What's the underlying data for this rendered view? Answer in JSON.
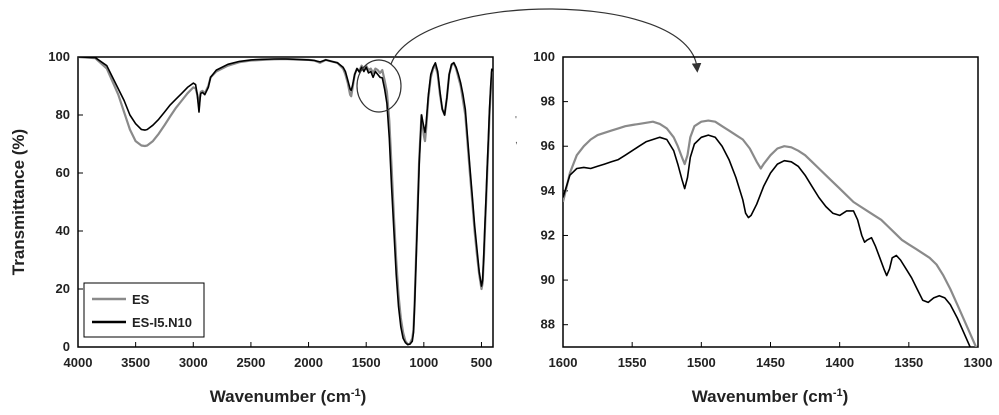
{
  "chart_data": [
    {
      "type": "line",
      "title": "",
      "xlabel": "Wavenumber (cm",
      "xlabel_sup": "-1",
      "xlabel_close": ")",
      "ylabel": "Transmittance (%)",
      "xlim": [
        4000,
        400
      ],
      "ylim": [
        0,
        100
      ],
      "x_reversed": true,
      "xticks": [
        "4000",
        "3500",
        "3000",
        "2500",
        "2000",
        "1500",
        "1000",
        "500"
      ],
      "yticks": [
        "0",
        "20",
        "40",
        "60",
        "80",
        "100"
      ],
      "grid": false,
      "legend": "bottom-left",
      "series": [
        {
          "name": "ES",
          "color": "#8a8a8a",
          "x": [
            4000,
            3850,
            3750,
            3650,
            3600,
            3550,
            3500,
            3450,
            3420,
            3400,
            3350,
            3300,
            3250,
            3200,
            3150,
            3100,
            3050,
            3000,
            2980,
            2965,
            2950,
            2940,
            2935,
            2920,
            2900,
            2870,
            2850,
            2800,
            2700,
            2600,
            2500,
            2400,
            2300,
            2200,
            2100,
            2000,
            1950,
            1900,
            1850,
            1800,
            1750,
            1700,
            1680,
            1660,
            1640,
            1630,
            1620,
            1600,
            1580,
            1560,
            1540,
            1520,
            1500,
            1480,
            1460,
            1440,
            1420,
            1400,
            1380,
            1360,
            1340,
            1320,
            1300,
            1280,
            1260,
            1240,
            1220,
            1200,
            1180,
            1160,
            1140,
            1120,
            1100,
            1090,
            1080,
            1060,
            1040,
            1020,
            1000,
            990,
            980,
            960,
            940,
            920,
            900,
            880,
            860,
            840,
            820,
            800,
            780,
            760,
            740,
            720,
            700,
            680,
            660,
            640,
            620,
            600,
            580,
            560,
            540,
            520,
            500,
            490,
            480,
            470,
            460,
            450,
            440,
            430,
            420,
            410
          ],
          "y": [
            100,
            99.6,
            96,
            87,
            81,
            75,
            71,
            69.5,
            69.3,
            69.5,
            71,
            73.5,
            76.5,
            79.5,
            82.5,
            85,
            87.5,
            89.5,
            89.2,
            87,
            83,
            87,
            88,
            88.3,
            87.5,
            90,
            93,
            95,
            97,
            98.2,
            98.8,
            99,
            99.2,
            99.3,
            99.1,
            99,
            98.8,
            98,
            99,
            98.5,
            98,
            96,
            94,
            91,
            87,
            86.5,
            89,
            94,
            96,
            95.2,
            97,
            96,
            97,
            95.5,
            96,
            94.5,
            96,
            95.5,
            94.5,
            95.5,
            92,
            88,
            78,
            62,
            45,
            30,
            18,
            10,
            5,
            2,
            1,
            1.2,
            3,
            6,
            15,
            40,
            65,
            80,
            73,
            71,
            75,
            86,
            93,
            96,
            97,
            94,
            87,
            82,
            80,
            86,
            94,
            97,
            98,
            96,
            93,
            90,
            85,
            80,
            70,
            60,
            50,
            40,
            32,
            25,
            20,
            22,
            30,
            40,
            50,
            60,
            70,
            80,
            88,
            95
          ]
        },
        {
          "name": "ES-I5.N10",
          "color": "#000000",
          "x": [
            4000,
            3850,
            3750,
            3650,
            3600,
            3550,
            3500,
            3450,
            3420,
            3400,
            3350,
            3300,
            3250,
            3200,
            3150,
            3100,
            3050,
            3000,
            2980,
            2965,
            2950,
            2940,
            2935,
            2920,
            2900,
            2870,
            2850,
            2800,
            2700,
            2600,
            2500,
            2400,
            2300,
            2200,
            2100,
            2000,
            1950,
            1900,
            1850,
            1800,
            1750,
            1700,
            1680,
            1660,
            1640,
            1630,
            1620,
            1600,
            1580,
            1560,
            1540,
            1520,
            1500,
            1480,
            1460,
            1440,
            1420,
            1400,
            1380,
            1360,
            1340,
            1320,
            1300,
            1280,
            1260,
            1240,
            1220,
            1200,
            1180,
            1160,
            1140,
            1120,
            1100,
            1090,
            1080,
            1060,
            1040,
            1020,
            1000,
            990,
            980,
            960,
            940,
            920,
            900,
            880,
            860,
            840,
            820,
            800,
            780,
            760,
            740,
            720,
            700,
            680,
            660,
            640,
            620,
            600,
            580,
            560,
            540,
            520,
            500,
            490,
            480,
            470,
            460,
            450,
            440,
            430,
            420,
            410
          ],
          "y": [
            100,
            99.8,
            97,
            89,
            85,
            80,
            77,
            75,
            74.8,
            75,
            76.5,
            78.5,
            81,
            83.5,
            85.5,
            87.5,
            89.5,
            91,
            90.5,
            87,
            81,
            86,
            87.5,
            87.8,
            87,
            89.5,
            93,
            95.5,
            97.5,
            98.5,
            99,
            99.2,
            99.3,
            99.3,
            99.2,
            99,
            98.8,
            98.3,
            99,
            98.5,
            98,
            96.5,
            95,
            92,
            89,
            88.5,
            90,
            94,
            96,
            94.8,
            96.5,
            95,
            96.5,
            94.5,
            95,
            93,
            95,
            94,
            93,
            92.8,
            89,
            84,
            72,
            55,
            40,
            25,
            14,
            7,
            3,
            1.5,
            0.8,
            1,
            2,
            5,
            14,
            38,
            63,
            80,
            76,
            74,
            77,
            87,
            94,
            96.5,
            98,
            95,
            88,
            82,
            80,
            86,
            94,
            97.5,
            98,
            96.5,
            94,
            91,
            87,
            82,
            72,
            62,
            52,
            42,
            34,
            26,
            21,
            23,
            32,
            42,
            52,
            62,
            72,
            82,
            90,
            96
          ]
        }
      ],
      "annotations": [
        "zoom-circle",
        "zoom-arrow"
      ]
    },
    {
      "type": "line",
      "title": "",
      "xlabel": "Wavenumber (cm",
      "xlabel_sup": "-1",
      "xlabel_close": ")",
      "ylabel": "",
      "xlim": [
        1600,
        1300
      ],
      "ylim": [
        87,
        100
      ],
      "x_reversed": true,
      "xticks": [
        "1600",
        "1550",
        "1500",
        "1450",
        "1400",
        "1350",
        "1300"
      ],
      "yticks": [
        "88",
        "90",
        "92",
        "94",
        "96",
        "98",
        "100"
      ],
      "grid": false,
      "series": [
        {
          "name": "ES",
          "color": "#8a8a8a",
          "x": [
            1600,
            1595,
            1590,
            1585,
            1580,
            1575,
            1570,
            1565,
            1560,
            1555,
            1550,
            1545,
            1540,
            1535,
            1530,
            1525,
            1520,
            1517,
            1514,
            1512,
            1510,
            1508,
            1505,
            1500,
            1495,
            1490,
            1485,
            1480,
            1475,
            1470,
            1465,
            1460,
            1457,
            1455,
            1450,
            1445,
            1440,
            1435,
            1430,
            1425,
            1420,
            1415,
            1410,
            1405,
            1400,
            1395,
            1390,
            1385,
            1380,
            1375,
            1370,
            1365,
            1360,
            1355,
            1350,
            1345,
            1340,
            1335,
            1330,
            1325,
            1320,
            1315,
            1310,
            1305,
            1300
          ],
          "y": [
            93.5,
            94.8,
            95.6,
            96.0,
            96.3,
            96.5,
            96.6,
            96.7,
            96.8,
            96.9,
            96.95,
            97.0,
            97.05,
            97.1,
            97.0,
            96.8,
            96.4,
            96.0,
            95.5,
            95.2,
            95.6,
            96.4,
            96.9,
            97.1,
            97.15,
            97.1,
            96.9,
            96.7,
            96.5,
            96.3,
            95.9,
            95.3,
            95.0,
            95.2,
            95.6,
            95.9,
            96.0,
            95.95,
            95.8,
            95.6,
            95.3,
            95.0,
            94.7,
            94.4,
            94.1,
            93.8,
            93.5,
            93.3,
            93.1,
            92.9,
            92.7,
            92.4,
            92.1,
            91.8,
            91.6,
            91.4,
            91.2,
            91.0,
            90.7,
            90.2,
            89.6,
            88.9,
            88.2,
            87.5,
            86.8
          ]
        },
        {
          "name": "ES-I5.N10",
          "color": "#000000",
          "x": [
            1600,
            1595,
            1590,
            1585,
            1580,
            1575,
            1570,
            1565,
            1560,
            1555,
            1550,
            1545,
            1540,
            1535,
            1530,
            1525,
            1520,
            1517,
            1514,
            1512,
            1510,
            1508,
            1505,
            1500,
            1495,
            1490,
            1485,
            1480,
            1475,
            1470,
            1468,
            1466,
            1464,
            1460,
            1455,
            1450,
            1445,
            1440,
            1435,
            1430,
            1425,
            1420,
            1415,
            1410,
            1405,
            1400,
            1395,
            1390,
            1387,
            1384,
            1382,
            1380,
            1377,
            1374,
            1371,
            1368,
            1366,
            1364,
            1362,
            1359,
            1356,
            1352,
            1348,
            1344,
            1340,
            1336,
            1332,
            1328,
            1324,
            1320,
            1315,
            1310,
            1305,
            1300
          ],
          "y": [
            93.7,
            94.7,
            95.0,
            95.05,
            95.0,
            95.1,
            95.2,
            95.3,
            95.4,
            95.6,
            95.8,
            96.0,
            96.2,
            96.3,
            96.4,
            96.3,
            95.8,
            95.2,
            94.5,
            94.1,
            94.6,
            95.5,
            96.1,
            96.4,
            96.5,
            96.4,
            96.0,
            95.4,
            94.6,
            93.6,
            93.0,
            92.8,
            92.9,
            93.4,
            94.2,
            94.8,
            95.2,
            95.35,
            95.3,
            95.1,
            94.7,
            94.2,
            93.7,
            93.3,
            93.0,
            92.9,
            93.1,
            93.1,
            92.7,
            92.0,
            91.7,
            91.8,
            91.9,
            91.5,
            91.0,
            90.5,
            90.2,
            90.5,
            91.0,
            91.1,
            90.9,
            90.5,
            90.1,
            89.6,
            89.1,
            89.0,
            89.2,
            89.3,
            89.2,
            88.9,
            88.3,
            87.6,
            86.9,
            86.0
          ]
        }
      ]
    }
  ]
}
